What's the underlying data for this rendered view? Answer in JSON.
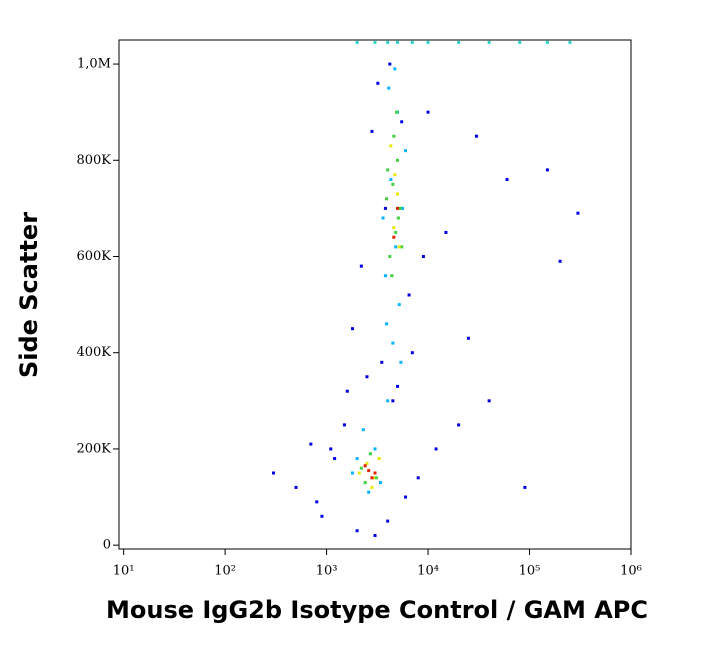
{
  "chart_data": {
    "type": "scatter",
    "x_label": "Mouse IgG2b Isotype Control / GAM APC",
    "y_label": "Side Scatter",
    "xscale": "log",
    "xlim": [
      9,
      1000000
    ],
    "ylim": [
      -8000,
      1050000
    ],
    "xticks": [
      {
        "value": 10,
        "label": "10¹"
      },
      {
        "value": 100,
        "label": "10²"
      },
      {
        "value": 1000,
        "label": "10³"
      },
      {
        "value": 10000,
        "label": "10⁴"
      },
      {
        "value": 100000,
        "label": "10⁵"
      },
      {
        "value": 1000000,
        "label": "10⁶"
      }
    ],
    "yticks": [
      0,
      {
        "value": 200000,
        "label": "200K"
      },
      {
        "value": 400000,
        "label": "400K"
      },
      {
        "value": 600000,
        "label": "600K"
      },
      {
        "value": 800000,
        "label": "800K"
      },
      {
        "value": 1000000,
        "label": "1,0M"
      }
    ],
    "series": [
      {
        "color": "#0000e6",
        "x": [
          300,
          500,
          800,
          1200,
          1500,
          900,
          2000,
          3000,
          4000,
          6000,
          8000,
          12000,
          20000,
          40000,
          90000,
          300000,
          150000,
          7000,
          2500,
          1800,
          3500,
          5000,
          4500,
          6500,
          9000,
          15000,
          25000,
          1100,
          700,
          1600,
          2200,
          3800,
          5500,
          3200,
          2800,
          4200,
          10000,
          30000,
          60000,
          200000
        ],
        "values": [
          150000,
          120000,
          90000,
          180000,
          250000,
          60000,
          30000,
          20000,
          50000,
          100000,
          140000,
          200000,
          250000,
          300000,
          120000,
          690000,
          780000,
          400000,
          350000,
          450000,
          380000,
          330000,
          300000,
          520000,
          600000,
          650000,
          430000,
          200000,
          210000,
          320000,
          580000,
          700000,
          880000,
          960000,
          860000,
          1000000,
          900000,
          850000,
          760000,
          590000
        ]
      },
      {
        "color": "#00b4ff",
        "x": [
          2000,
          2600,
          3000,
          1800,
          2300,
          3400,
          4000,
          4500,
          5200,
          3800,
          4800,
          5600,
          4300,
          6000,
          5000,
          4100,
          3600,
          5400,
          4700,
          3900
        ],
        "values": [
          180000,
          110000,
          200000,
          150000,
          240000,
          130000,
          300000,
          420000,
          500000,
          560000,
          620000,
          700000,
          760000,
          820000,
          900000,
          950000,
          680000,
          380000,
          990000,
          460000
        ]
      },
      {
        "color": "#2ad4c8",
        "x": [
          2000,
          3000,
          4000,
          5000,
          7000,
          10000,
          20000,
          40000,
          80000,
          150000,
          250000
        ],
        "values": [
          1045000,
          1045000,
          1045000,
          1045000,
          1045000,
          1045000,
          1045000,
          1045000,
          1045000,
          1045000,
          1045000
        ]
      },
      {
        "color": "#40d040",
        "x": [
          2200,
          2700,
          3100,
          2400,
          4200,
          4800,
          5300,
          4500,
          5000,
          3900,
          4600,
          5500,
          4400,
          4900,
          5100,
          4000
        ],
        "values": [
          160000,
          190000,
          140000,
          130000,
          600000,
          650000,
          700000,
          750000,
          800000,
          720000,
          850000,
          620000,
          560000,
          900000,
          680000,
          780000
        ]
      },
      {
        "color": "#e8e800",
        "x": [
          2500,
          2900,
          3300,
          2100,
          4600,
          5000,
          4300,
          5200,
          4700,
          2800
        ],
        "values": [
          170000,
          140000,
          180000,
          150000,
          660000,
          730000,
          830000,
          620000,
          770000,
          120000
        ]
      },
      {
        "color": "#e02000",
        "x": [
          2600,
          3000,
          2400,
          2800,
          5000,
          4600
        ],
        "values": [
          155000,
          150000,
          165000,
          140000,
          700000,
          640000
        ]
      }
    ]
  }
}
